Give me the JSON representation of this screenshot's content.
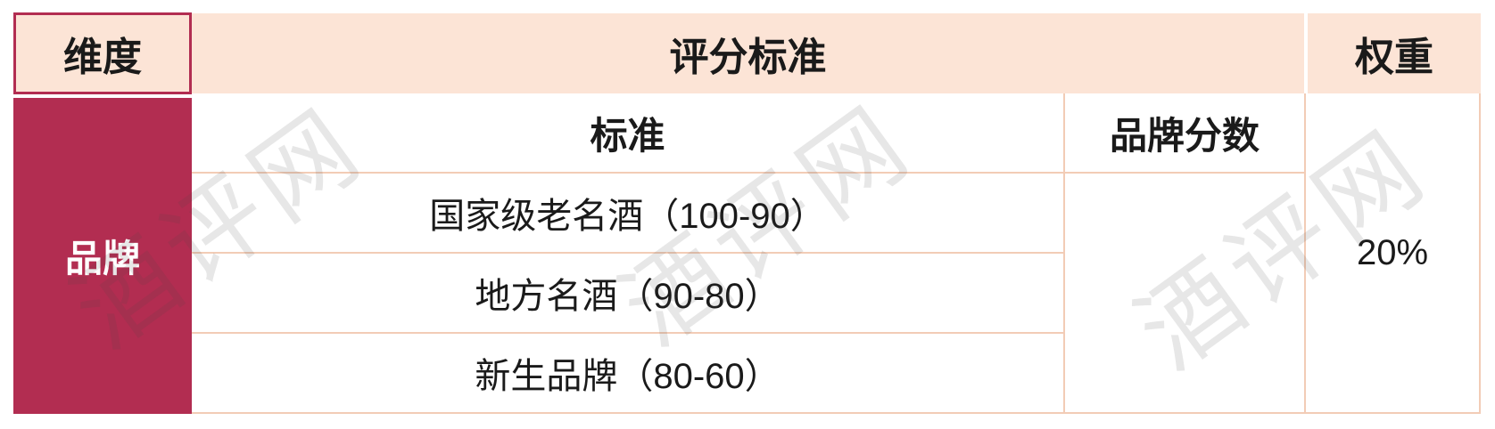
{
  "watermark": {
    "text": "酒评网"
  },
  "colors": {
    "accent_red": "#b22d51",
    "header_bg": "#fce4d6",
    "grid_line": "#f2ccb6",
    "body_text": "#1a1a1a",
    "inverse_text": "#ffffff"
  },
  "table": {
    "header": {
      "dimension": "维度",
      "scoring_standard": "评分标准",
      "weight": "权重"
    },
    "sub_header": {
      "standard": "标准",
      "brand_score": "品牌分数"
    },
    "rows": [
      {
        "dimension": "品牌",
        "criteria": [
          "国家级老名酒（100-90）",
          "地方名酒（90-80）",
          "新生品牌（80-60）"
        ],
        "brand_score": "",
        "weight": "20%"
      }
    ]
  }
}
